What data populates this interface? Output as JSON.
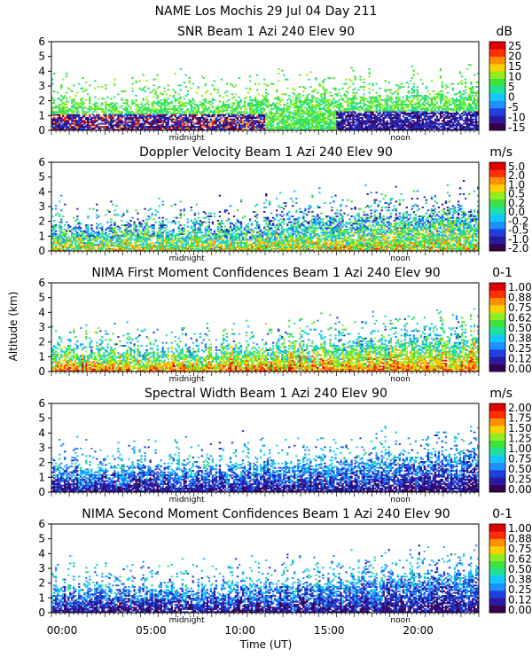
{
  "header": {
    "line1": "NAME Los Mochis    29 Jul 04 Day 211"
  },
  "colors": {
    "scale": [
      "#3a0050",
      "#2a1aa0",
      "#1f3fe0",
      "#1e90ff",
      "#14c8ff",
      "#20e0a0",
      "#40e040",
      "#90ee20",
      "#ffd000",
      "#ff9000",
      "#ff3000",
      "#e00000"
    ]
  },
  "chart_data": {
    "type": "heatmap",
    "shared_x": {
      "label": "Time (UT)",
      "range": [
        0,
        24
      ],
      "ticks": [
        0,
        5,
        10,
        15,
        20
      ],
      "tick_labels": [
        "00:00",
        "05:00",
        "10:00",
        "15:00",
        "20:00"
      ],
      "annotations": [
        {
          "text": "midnight",
          "x": 7.6
        },
        {
          "text": "noon",
          "x": 19.6
        }
      ]
    },
    "shared_y": {
      "label": "Altitude (km)",
      "range": [
        0,
        6
      ],
      "ticks": [
        0,
        1,
        2,
        3,
        4,
        5,
        6
      ],
      "tick_labels": [
        "0",
        "1",
        "2",
        "3",
        "4",
        "5",
        "6"
      ]
    },
    "panels": [
      {
        "title": "SNR Beam 1 Azi 240 Elev 90",
        "unit": "dB",
        "colorbar_labels": [
          "25",
          "20",
          "15",
          "10",
          "5",
          "0",
          "-5",
          "-10",
          "-15"
        ],
        "profile": {
          "top_early": 1.9,
          "top_late": 2.6,
          "low_band": [
            0.3,
            1.2
          ],
          "bias": "high-near-ground"
        }
      },
      {
        "title": "Doppler Velocity Beam 1 Azi 240 Elev 90",
        "unit": "m/s",
        "colorbar_labels": [
          "5.0",
          "2.0",
          "1.0",
          "0.5",
          "0.2",
          "0.0",
          "-0.2",
          "-0.5",
          "-1.0",
          "-2.0"
        ],
        "profile": {
          "top_early": 1.6,
          "top_late": 2.8,
          "bias": "mixed"
        }
      },
      {
        "title": "NIMA First Moment Confidences Beam 1 Azi 240 Elev 90",
        "unit": "0-1",
        "colorbar_labels": [
          "1.00",
          "0.88",
          "0.75",
          "0.62",
          "0.50",
          "0.38",
          "0.25",
          "0.12",
          "0.00"
        ],
        "profile": {
          "top_early": 1.4,
          "top_late": 2.4,
          "bias": "high"
        }
      },
      {
        "title": "Spectral Width Beam 1 Azi 240 Elev 90",
        "unit": "m/s",
        "colorbar_labels": [
          "2.00",
          "1.75",
          "1.50",
          "1.25",
          "1.00",
          "0.75",
          "0.50",
          "0.25",
          "0.00"
        ],
        "profile": {
          "top_early": 1.6,
          "top_late": 2.6,
          "bias": "low"
        }
      },
      {
        "title": "NIMA Second Moment Confidences Beam 1 Azi 240 Elev 90",
        "unit": "0-1",
        "colorbar_labels": [
          "1.00",
          "0.88",
          "0.75",
          "0.62",
          "0.50",
          "0.38",
          "0.25",
          "0.12",
          "0.00"
        ],
        "profile": {
          "top_early": 1.6,
          "top_late": 2.8,
          "bias": "low"
        }
      }
    ]
  }
}
